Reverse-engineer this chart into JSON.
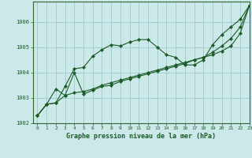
{
  "title": "Graphe pression niveau de la mer (hPa)",
  "background_color": "#cce8e8",
  "plot_bg_color": "#cce8e8",
  "grid_color": "#99cccc",
  "line_color": "#1a5c28",
  "marker_color": "#1a5c28",
  "xlim": [
    -0.5,
    23
  ],
  "ylim": [
    1002,
    1006.8
  ],
  "xticks": [
    0,
    1,
    2,
    3,
    4,
    5,
    6,
    7,
    8,
    9,
    10,
    11,
    12,
    13,
    14,
    15,
    16,
    17,
    18,
    19,
    20,
    21,
    22,
    23
  ],
  "yticks": [
    1002,
    1003,
    1004,
    1005,
    1006
  ],
  "series": [
    [
      1002.3,
      1002.75,
      1002.8,
      1003.45,
      1004.15,
      1004.2,
      1004.65,
      1004.9,
      1005.1,
      1005.05,
      1005.2,
      1005.3,
      1005.3,
      1005.0,
      1004.7,
      1004.6,
      1004.3,
      1004.3,
      1004.5,
      1005.1,
      1005.5,
      1005.8,
      1006.1,
      1006.65
    ],
    [
      1002.3,
      1002.75,
      1003.35,
      1003.1,
      1004.0,
      1003.15,
      1003.3,
      1003.45,
      1003.5,
      1003.65,
      1003.75,
      1003.85,
      1003.95,
      1004.05,
      1004.15,
      1004.25,
      1004.35,
      1004.5,
      1004.6,
      1004.8,
      1005.05,
      1005.35,
      1005.8,
      1006.65
    ],
    [
      1002.3,
      1002.75,
      1002.8,
      1003.1,
      1003.2,
      1003.25,
      1003.35,
      1003.5,
      1003.6,
      1003.7,
      1003.8,
      1003.9,
      1004.0,
      1004.1,
      1004.2,
      1004.3,
      1004.4,
      1004.5,
      1004.6,
      1004.7,
      1004.85,
      1005.05,
      1005.55,
      1006.65
    ]
  ]
}
